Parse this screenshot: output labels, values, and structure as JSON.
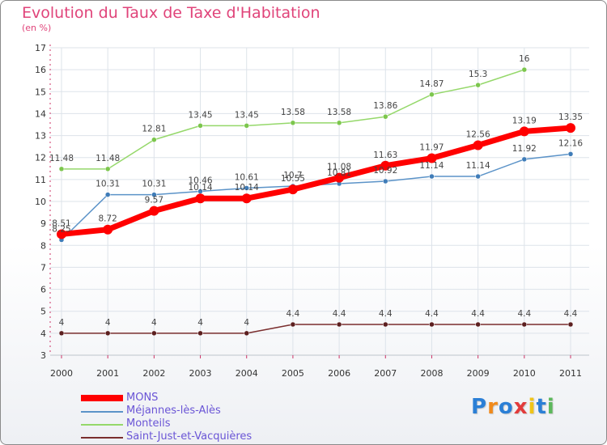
{
  "header": {
    "title": "Evolution du Taux de Taxe d'Habitation",
    "subtitle": "(en %)"
  },
  "colors": {
    "title": "#e0447a",
    "legend_text": "#6a55d6",
    "grid": "#dde3ea",
    "axis_ticks": "#cc3366"
  },
  "legend": {
    "items": [
      {
        "label": "MONS",
        "color": "#ff0000"
      },
      {
        "label": "Méjannes-lès-Alès",
        "color": "#5b93c8"
      },
      {
        "label": "Monteils",
        "color": "#95d86a"
      },
      {
        "label": "Saint-Just-et-Vacquières",
        "color": "#7a2e2e"
      }
    ]
  },
  "logo": {
    "text": "Proxiti",
    "colors": [
      "#2b7fd6",
      "#f08a1c",
      "#2b7fd6",
      "#e23b3b",
      "#f0c419",
      "#2b7fd6",
      "#5cb85c"
    ]
  },
  "chart_data": {
    "type": "line",
    "title": "Evolution du Taux de Taxe d'Habitation",
    "ylabel": "(en %)",
    "xlabel": "",
    "x": [
      "2000",
      "2001",
      "2002",
      "2003",
      "2004",
      "2005",
      "2006",
      "2007",
      "2008",
      "2009",
      "2010",
      "2011"
    ],
    "ylim": [
      3,
      17
    ],
    "yticks": [
      "3",
      "4",
      "5",
      "6",
      "7",
      "8",
      "9",
      "10",
      "11",
      "12",
      "13",
      "14",
      "15",
      "16",
      "17"
    ],
    "grid": true,
    "series": [
      {
        "name": "Monteils",
        "color": "#95d86a",
        "dot": "#7cc64d",
        "values": [
          11.48,
          11.48,
          12.81,
          13.45,
          13.45,
          13.58,
          13.58,
          13.86,
          14.87,
          15.3,
          16,
          null
        ],
        "labels": [
          "11.48",
          "11.48",
          "12.81",
          "13.45",
          "13.45",
          "13.58",
          "13.58",
          "13.86",
          "14.87",
          "15.3",
          "16",
          ""
        ]
      },
      {
        "name": "Méjannes-lès-Alès",
        "color": "#5b93c8",
        "dot": "#3f7cb8",
        "values": [
          8.25,
          10.31,
          10.31,
          10.46,
          10.61,
          10.7,
          10.81,
          10.92,
          11.14,
          11.14,
          11.92,
          12.16
        ],
        "labels": [
          "8.25",
          "10.31",
          "10.31",
          "10.46",
          "10.61",
          "10.7",
          "10.81",
          "10.92",
          "11.14",
          "11.14",
          "11.92",
          "12.16"
        ]
      },
      {
        "name": "Saint-Just-et-Vacquières",
        "color": "#7a2e2e",
        "dot": "#5c1f1f",
        "values": [
          4,
          4,
          4,
          4,
          4,
          4.4,
          4.4,
          4.4,
          4.4,
          4.4,
          4.4,
          4.4
        ],
        "labels": [
          "4",
          "4",
          "4",
          "4",
          "4",
          "4.4",
          "4.4",
          "4.4",
          "4.4",
          "4.4",
          "4.4",
          "4.4"
        ]
      },
      {
        "name": "MONS",
        "color": "#ff0000",
        "dot": "#ff0000",
        "values": [
          8.51,
          8.72,
          9.57,
          10.14,
          10.14,
          10.55,
          11.08,
          11.63,
          11.97,
          12.56,
          13.19,
          13.35
        ],
        "labels": [
          "8.51",
          "8.72",
          "9.57",
          "10.14",
          "10.14",
          "10.55",
          "11.08",
          "11.63",
          "11.97",
          "12.56",
          "13.19",
          "13.35"
        ]
      }
    ]
  }
}
